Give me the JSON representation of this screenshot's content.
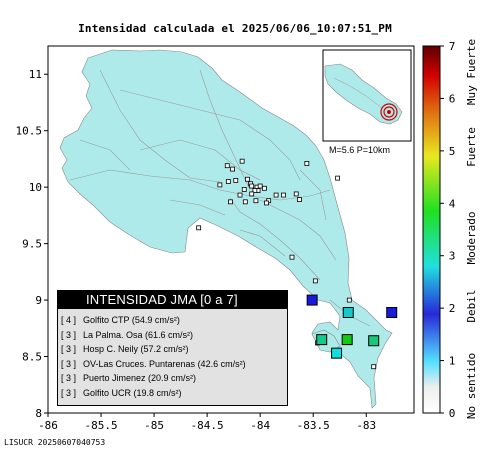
{
  "title": "Intensidad calculada el 2025/06/06_10:07:51_PM",
  "footer_id": "LISUCR 20250607040753",
  "map": {
    "x_ticks": [
      "-86",
      "-85.5",
      "-85",
      "-84.5",
      "-84",
      "-83.5",
      "-83"
    ],
    "y_ticks": [
      "11",
      "10.5",
      "10",
      "9.5",
      "9",
      "8.5",
      "8"
    ],
    "xlim": [
      -86,
      -82.55
    ],
    "ylim": [
      8,
      11.25
    ],
    "land_color": "#aeeaea",
    "sea_color": "#ffffff",
    "stations_small": [
      [
        -83.56,
        10.21
      ],
      [
        -83.27,
        10.08
      ],
      [
        -84.31,
        10.19
      ],
      [
        -84.26,
        10.16
      ],
      [
        -84.17,
        10.23
      ],
      [
        -84.3,
        10.05
      ],
      [
        -84.23,
        10.06
      ],
      [
        -84.12,
        10.07
      ],
      [
        -84.09,
        10.03
      ],
      [
        -84.08,
        10.01
      ],
      [
        -84.03,
        10.0
      ],
      [
        -84.0,
        10.01
      ],
      [
        -84.02,
        9.97
      ],
      [
        -83.96,
        9.99
      ],
      [
        -84.05,
        9.97
      ],
      [
        -84.08,
        9.94
      ],
      [
        -84.15,
        9.98
      ],
      [
        -84.19,
        9.93
      ],
      [
        -84.38,
        10.02
      ],
      [
        -84.28,
        9.87
      ],
      [
        -84.14,
        9.87
      ],
      [
        -84.04,
        9.88
      ],
      [
        -83.92,
        9.88
      ],
      [
        -83.85,
        9.93
      ],
      [
        -83.78,
        9.93
      ],
      [
        -83.66,
        9.94
      ],
      [
        -83.63,
        9.89
      ],
      [
        -83.94,
        9.86
      ],
      [
        -84.58,
        9.64
      ],
      [
        -83.7,
        9.38
      ],
      [
        -83.48,
        9.17
      ],
      [
        -83.16,
        9.0
      ],
      [
        -83.46,
        8.62
      ],
      [
        -82.93,
        8.41
      ]
    ],
    "stations_intensity": [
      {
        "lon": -83.51,
        "lat": 9.0,
        "level": 2,
        "color": "#1a1adc"
      },
      {
        "lon": -83.17,
        "lat": 8.89,
        "level": 3,
        "color": "#16c8c8"
      },
      {
        "lon": -82.76,
        "lat": 8.89,
        "level": 2,
        "color": "#1a1adc"
      },
      {
        "lon": -83.42,
        "lat": 8.65,
        "level": 3,
        "color": "#15c88c"
      },
      {
        "lon": -83.18,
        "lat": 8.65,
        "level": 4,
        "color": "#14c814"
      },
      {
        "lon": -82.93,
        "lat": 8.64,
        "level": 3,
        "color": "#18c878"
      },
      {
        "lon": -83.28,
        "lat": 8.53,
        "level": 3,
        "color": "#12dcdc"
      }
    ]
  },
  "inset": {
    "label": "M=5.6 P=10km"
  },
  "scale": {
    "ticks": [
      "0",
      "1",
      "2",
      "3",
      "4",
      "5",
      "6",
      "7"
    ],
    "categories": [
      "No sentido",
      "Debil",
      "Moderado",
      "Fuerte",
      "Muy Fuerte"
    ],
    "colors": [
      "#ffffff",
      "#55e0ff",
      "#2828d8",
      "#20e0e0",
      "#20e020",
      "#e8e820",
      "#e07010",
      "#d00000",
      "#600000"
    ]
  },
  "legend": {
    "title": "INTENSIDAD JMA [0 a 7]",
    "items": [
      {
        "level": "[ 4 ]",
        "name": "Golfito CTP",
        "value": "(54.9 cm/s²)"
      },
      {
        "level": "[ 3 ]",
        "name": "La Palma. Osa",
        "value": "(61.6 cm/s²)"
      },
      {
        "level": "[ 3 ]",
        "name": "Hosp C. Neily",
        "value": "(57.2 cm/s²)"
      },
      {
        "level": "[ 3 ]",
        "name": "OV-Las Cruces. Puntarenas",
        "value": "(42.6 cm/s²)"
      },
      {
        "level": "[ 3 ]",
        "name": "Puerto Jimenez",
        "value": "(20.9 cm/s²)"
      },
      {
        "level": "[ 3 ]",
        "name": "Golfito UCR",
        "value": "(19.8 cm/s²)"
      }
    ]
  }
}
